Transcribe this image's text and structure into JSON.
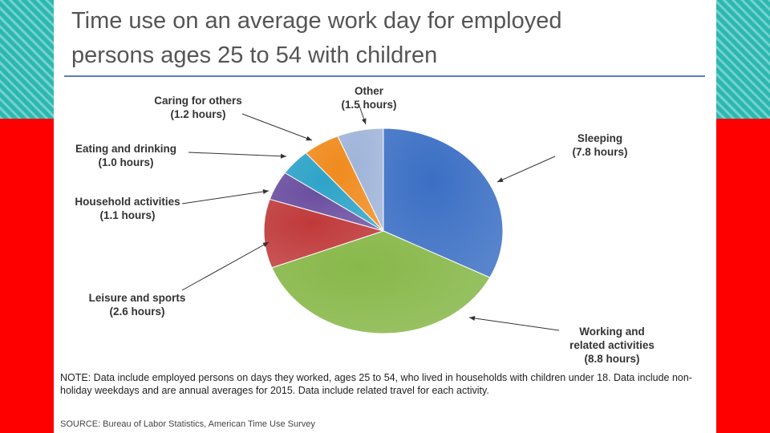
{
  "colors": {
    "background": "#ff0000",
    "accent_band": "#2bb8b0",
    "slide": "#ffffff",
    "rule": "#5b7fb9"
  },
  "chart_data": {
    "type": "pie",
    "title_lines": [
      "Time use on an average work day for employed",
      "persons ages 25 to 54 with children"
    ],
    "unit": "hours",
    "slices": [
      {
        "label": "Sleeping",
        "value": 7.8,
        "value_label": "(7.8 hours)",
        "color": "#3b6fc4"
      },
      {
        "label": "Working and related activities",
        "label_lines": [
          "Working and",
          "related activities"
        ],
        "value": 8.8,
        "value_label": "(8.8 hours)",
        "color": "#88b84a"
      },
      {
        "label": "Leisure and sports",
        "value": 2.6,
        "value_label": "(2.6 hours)",
        "color": "#c0393a"
      },
      {
        "label": "Household activities",
        "value": 1.1,
        "value_label": "(1.1 hours)",
        "color": "#6b4fa0"
      },
      {
        "label": "Eating and drinking",
        "value": 1.0,
        "value_label": "(1.0 hours)",
        "color": "#2ea3c8"
      },
      {
        "label": "Caring for others",
        "value": 1.2,
        "value_label": "(1.2 hours)",
        "color": "#f08b1e"
      },
      {
        "label": "Other",
        "value": 1.5,
        "value_label": "(1.5 hours)",
        "color": "#9fb4d9"
      }
    ],
    "start_angle_deg": 0,
    "direction": "clockwise"
  },
  "note": "NOTE: Data include employed persons on days they worked, ages 25 to 54, who lived in households with children under 18. Data include non-holiday weekdays and are annual averages for 2015. Data include related travel for each activity.",
  "source": "SOURCE: Bureau of Labor Statistics, American Time Use Survey"
}
